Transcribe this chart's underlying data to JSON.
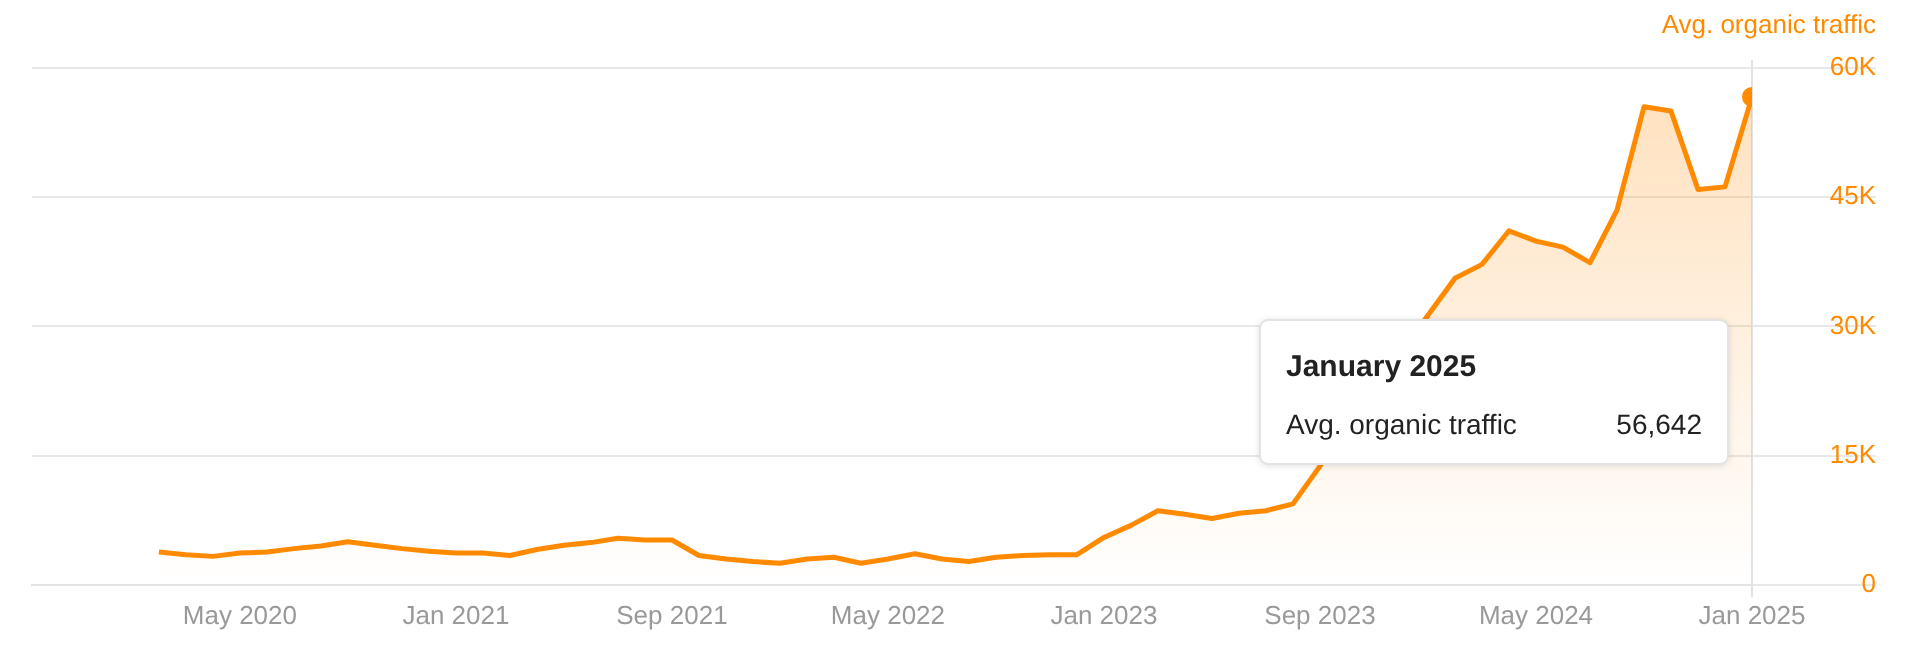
{
  "chart_data": {
    "type": "area",
    "ylabel": "Avg. organic traffic",
    "x": [
      "2020-02",
      "2020-03",
      "2020-04",
      "2020-05",
      "2020-06",
      "2020-07",
      "2020-08",
      "2020-09",
      "2020-10",
      "2020-11",
      "2020-12",
      "2021-01",
      "2021-02",
      "2021-03",
      "2021-04",
      "2021-05",
      "2021-06",
      "2021-07",
      "2021-08",
      "2021-09",
      "2021-10",
      "2021-11",
      "2021-12",
      "2022-01",
      "2022-02",
      "2022-03",
      "2022-04",
      "2022-05",
      "2022-06",
      "2022-07",
      "2022-08",
      "2022-09",
      "2022-10",
      "2022-11",
      "2022-12",
      "2023-01",
      "2023-02",
      "2023-03",
      "2023-04",
      "2023-05",
      "2023-06",
      "2023-07",
      "2023-08",
      "2023-09",
      "2023-10",
      "2023-11",
      "2023-12",
      "2024-01",
      "2024-02",
      "2024-03",
      "2024-04",
      "2024-05",
      "2024-06",
      "2024-07",
      "2024-08",
      "2024-09",
      "2024-10",
      "2024-11",
      "2024-12",
      "2025-01"
    ],
    "series": [
      {
        "color": "#ff8a00",
        "values": [
          3800,
          3500,
          3300,
          3700,
          3800,
          4200,
          4500,
          5000,
          4600,
          4200,
          3900,
          3700,
          3700,
          3400,
          4100,
          4600,
          4900,
          5400,
          5200,
          5200,
          3400,
          3000,
          2700,
          2500,
          3000,
          3200,
          2500,
          3000,
          3600,
          3000,
          2700,
          3200,
          3400,
          3500,
          3500,
          5500,
          6900,
          8600,
          8200,
          7700,
          8300,
          8600,
          9400,
          null,
          null,
          null,
          null,
          31300,
          35600,
          37200,
          41100,
          39900,
          39200,
          37400,
          43500,
          55500,
          55000,
          45900,
          46200,
          56642
        ]
      }
    ],
    "xlim": [
      "2019-09-10",
      "2025-01"
    ],
    "xticks": [
      {
        "value": "2020-05",
        "label": "May 2020"
      },
      {
        "value": "2021-01",
        "label": "Jan 2021"
      },
      {
        "value": "2021-09",
        "label": "Sep 2021"
      },
      {
        "value": "2022-05",
        "label": "May 2022"
      },
      {
        "value": "2023-01",
        "label": "Jan 2023"
      },
      {
        "value": "2023-09",
        "label": "Sep 2023"
      },
      {
        "value": "2024-05",
        "label": "May 2024"
      },
      {
        "value": "2025-01",
        "label": "Jan 2025"
      }
    ],
    "ylim": [
      0,
      60000
    ],
    "yticks": [
      0,
      {
        "value": 15000,
        "label": "15K"
      },
      {
        "value": 30000,
        "label": "30K"
      },
      {
        "value": 45000,
        "label": "45K"
      },
      {
        "value": 60000,
        "label": "60K"
      }
    ],
    "grid": "y",
    "ref_lines": [
      {
        "axis": "x",
        "value": "2025-01",
        "color": "#e2e2e2"
      }
    ],
    "annotations": [
      "January 2025",
      "Avg. organic traffic",
      "56,642"
    ]
  }
}
